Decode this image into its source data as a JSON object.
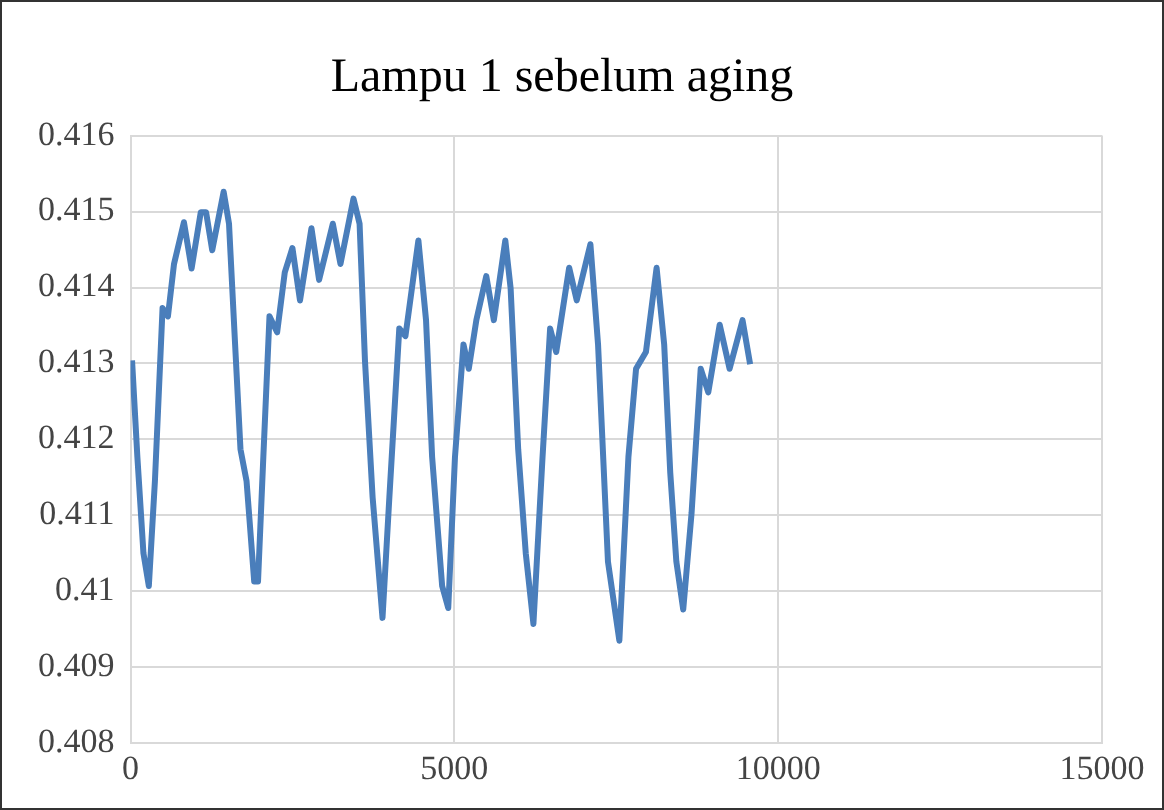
{
  "chart_data": {
    "type": "line",
    "title": "Lampu 1 sebelum aging",
    "x": [
      24,
      106,
      200,
      283,
      377,
      495,
      578,
      672,
      825,
      943,
      1085,
      1167,
      1262,
      1438,
      1521,
      1615,
      1698,
      1792,
      1910,
      1969,
      2051,
      2146,
      2264,
      2382,
      2500,
      2617,
      2794,
      2912,
      3124,
      3242,
      3443,
      3537,
      3620,
      3738,
      3891,
      3997,
      4150,
      4245,
      4445,
      4563,
      4657,
      4812,
      4906,
      5010,
      5141,
      5223,
      5340,
      5493,
      5610,
      5787,
      5869,
      5986,
      6103,
      6221,
      6362,
      6479,
      6573,
      6773,
      6890,
      7101,
      7219,
      7372,
      7548,
      7688,
      7806,
      7958,
      8123,
      8240,
      8334,
      8428,
      8534,
      8663,
      8804,
      8921,
      9097,
      9250,
      9450,
      9567
    ],
    "series": [
      {
        "color": "#4a7ebb",
        "values": [
          0.41304,
          0.41177,
          0.4105,
          0.41007,
          0.41145,
          0.41373,
          0.41362,
          0.41431,
          0.41486,
          0.41425,
          0.41499,
          0.41499,
          0.41449,
          0.41526,
          0.41484,
          0.41325,
          0.41187,
          0.41145,
          0.41013,
          0.41013,
          0.41177,
          0.41362,
          0.41341,
          0.4142,
          0.41452,
          0.41383,
          0.41478,
          0.4141,
          0.41484,
          0.41431,
          0.41517,
          0.41484,
          0.41304,
          0.41124,
          0.40965,
          0.41124,
          0.41346,
          0.41336,
          0.41462,
          0.41357,
          0.41177,
          0.41007,
          0.40978,
          0.41177,
          0.41325,
          0.41293,
          0.41357,
          0.41415,
          0.41357,
          0.41462,
          0.41399,
          0.41187,
          0.4105,
          0.40957,
          0.41177,
          0.41346,
          0.41315,
          0.41426,
          0.41383,
          0.41457,
          0.41325,
          0.41039,
          0.40935,
          0.41177,
          0.41293,
          0.41315,
          0.41426,
          0.41325,
          0.41156,
          0.41039,
          0.40976,
          0.41103,
          0.41293,
          0.41262,
          0.41351,
          0.41293,
          0.41357,
          0.41299
        ]
      }
    ],
    "xlim": [
      0,
      15000
    ],
    "xticks": [
      0,
      5000,
      10000,
      15000
    ],
    "ylim": [
      0.408,
      0.416
    ],
    "yticks": [
      0.408,
      0.409,
      0.41,
      0.411,
      0.412,
      0.413,
      0.414,
      0.415,
      0.416
    ],
    "grid": true,
    "marker": "none",
    "line_style": "solid"
  }
}
